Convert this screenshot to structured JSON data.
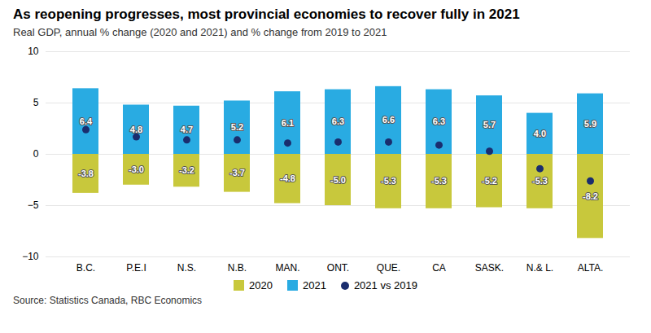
{
  "chart_data": {
    "type": "bar",
    "title": "As reopening progresses, most provincial economies to recover fully in 2021",
    "subtitle": "Real GDP, annual % change (2020 and 2021) and % change from 2019 to 2021",
    "source": "Source: Statistics Canada, RBC Economics",
    "categories": [
      "B.C.",
      "P.E.I",
      "N.S.",
      "N.B.",
      "MAN.",
      "ONT.",
      "QUE.",
      "CA",
      "SASK.",
      "N.& L.",
      "ALTA."
    ],
    "series": [
      {
        "name": "2020",
        "type": "bar",
        "color": "#c8c83c",
        "data_labels": true,
        "values": [
          -3.8,
          -3.0,
          -3.2,
          -3.7,
          -4.8,
          -5.0,
          -5.3,
          -5.3,
          -5.2,
          -5.3,
          -8.2
        ],
        "value_labels": [
          "-3.8",
          "-3.0",
          "-3.2",
          "-3.7",
          "-4.8",
          "-5.0",
          "-5.3",
          "-5.3",
          "-5.2",
          "-5.3",
          "-8.2"
        ]
      },
      {
        "name": "2021",
        "type": "bar",
        "color": "#29abe2",
        "data_labels": true,
        "values": [
          6.4,
          4.8,
          4.7,
          5.2,
          6.1,
          6.3,
          6.6,
          6.3,
          5.7,
          4.0,
          5.9
        ],
        "value_labels": [
          "6.4",
          "4.8",
          "4.7",
          "5.2",
          "6.1",
          "6.3",
          "6.6",
          "6.3",
          "5.7",
          "4.0",
          "5.9"
        ]
      },
      {
        "name": "2021 vs 2019",
        "type": "scatter",
        "marker": "circle",
        "color": "#1a2d6e",
        "data_labels": false,
        "values": [
          2.4,
          1.7,
          1.4,
          1.4,
          1.1,
          1.2,
          1.2,
          0.9,
          0.3,
          -1.4,
          -2.6
        ]
      }
    ],
    "ylim": [
      -10,
      10
    ],
    "yticks": [
      -10,
      -5,
      0,
      5,
      10
    ],
    "grid": true,
    "legend": "bottom"
  }
}
